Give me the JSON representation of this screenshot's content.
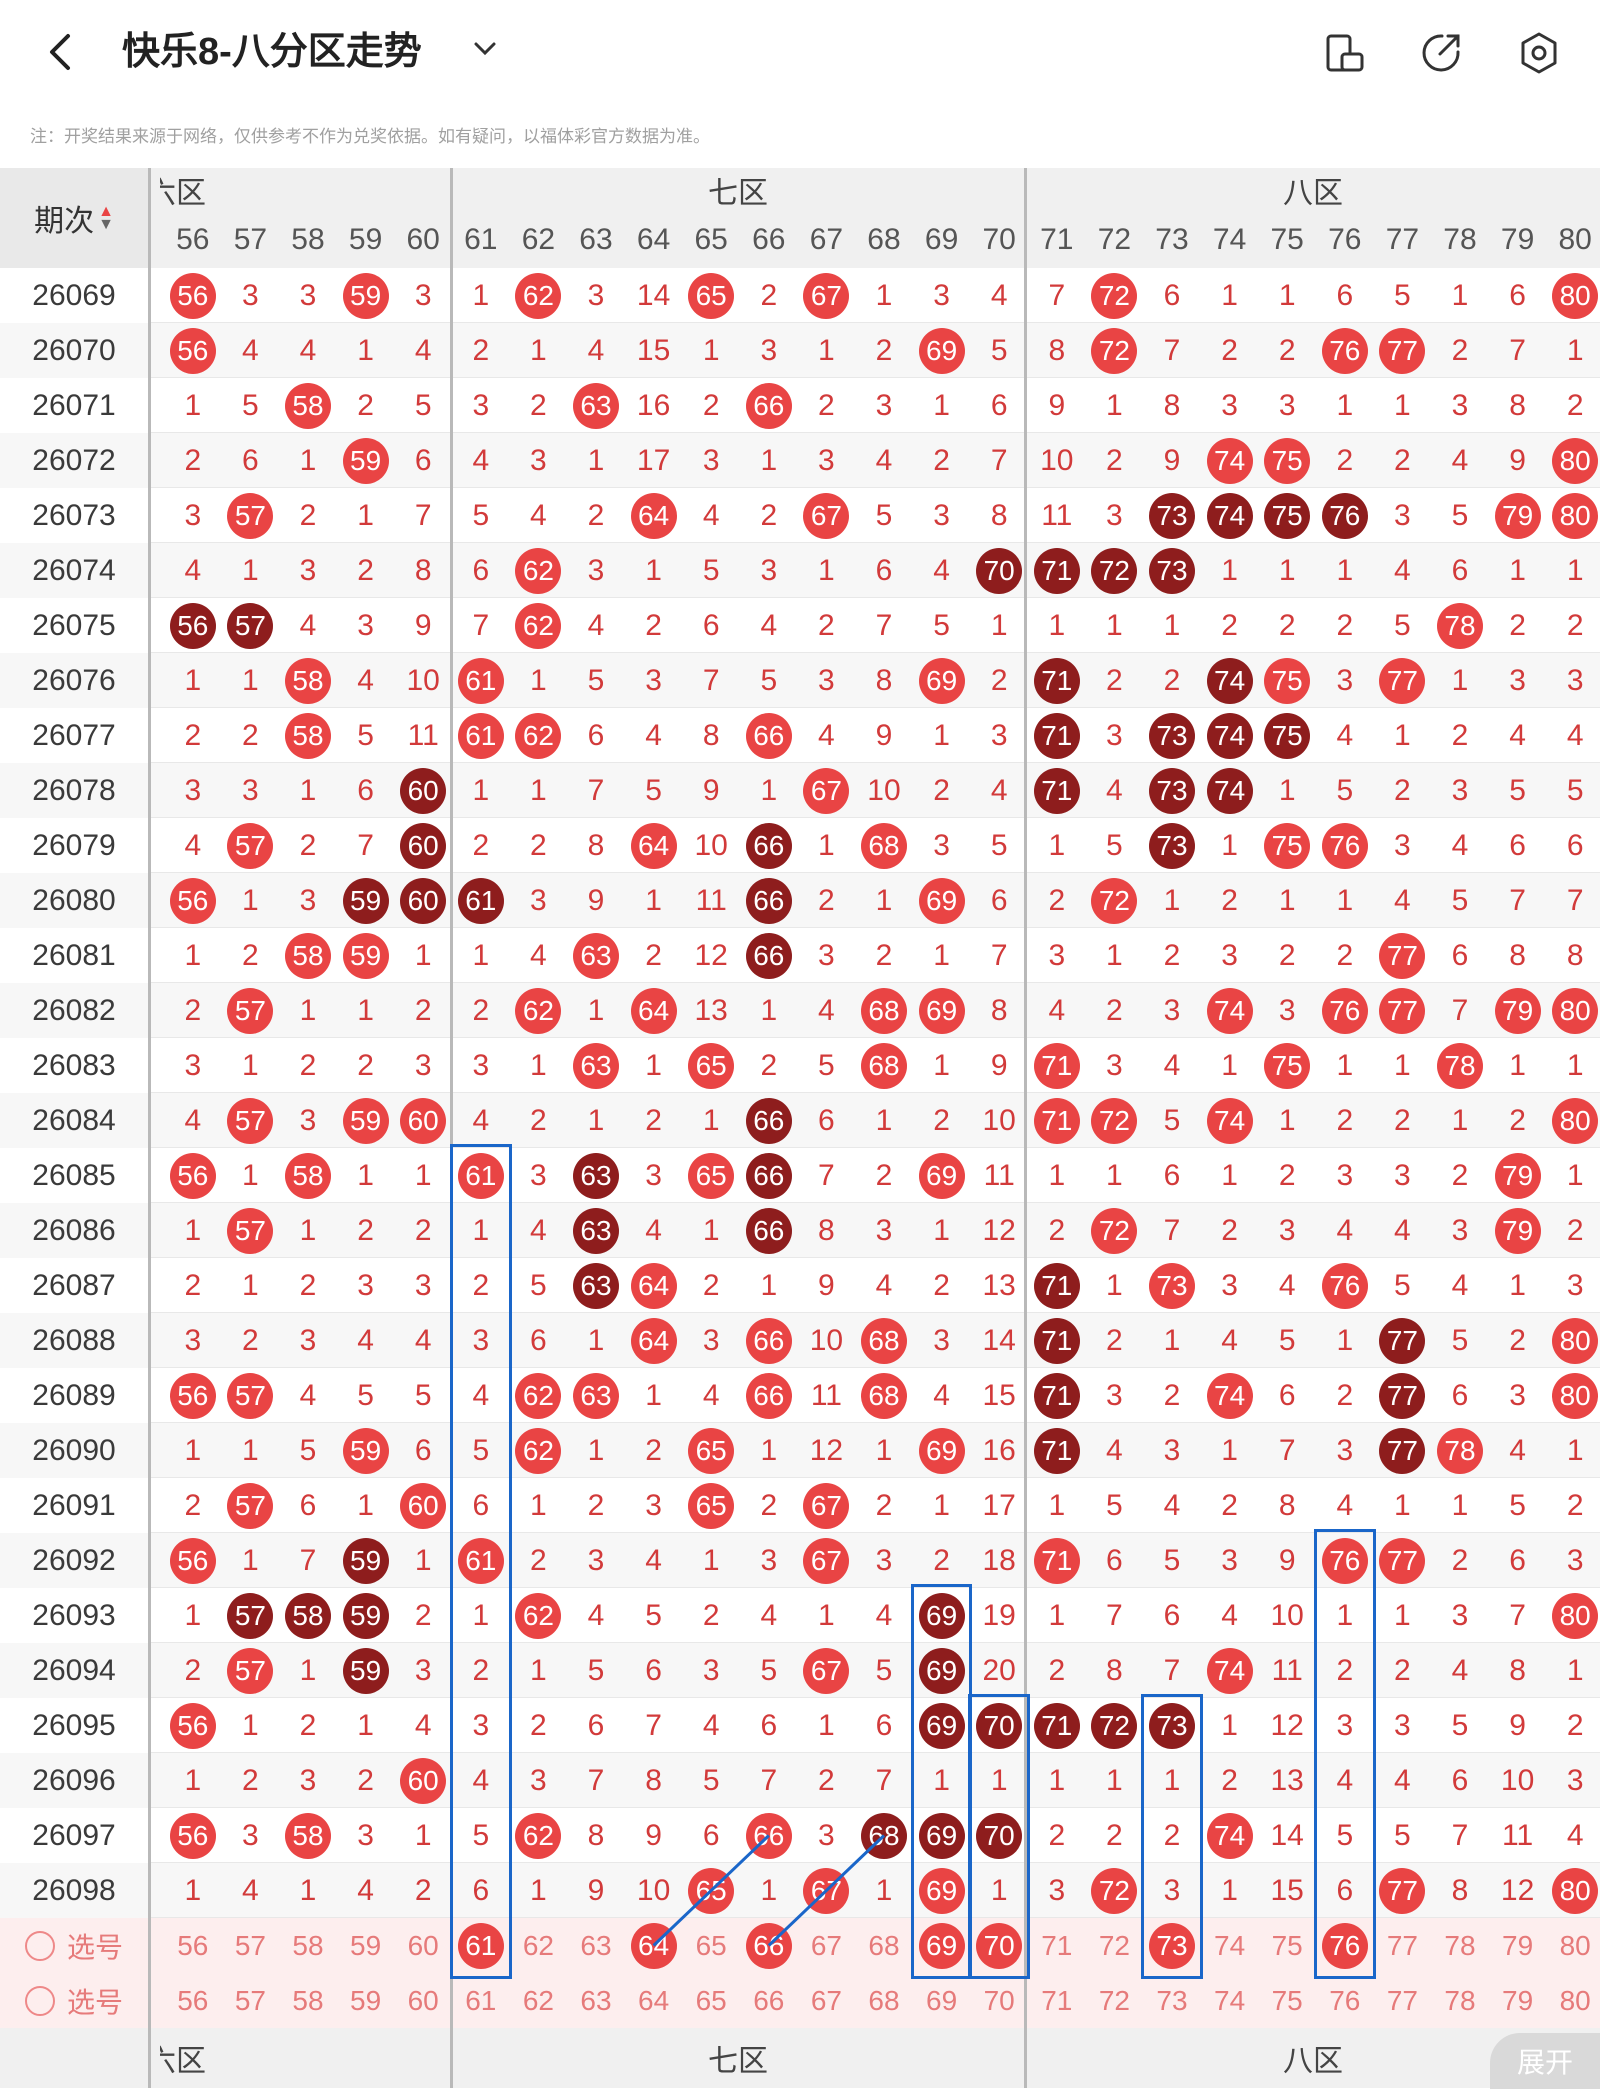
{
  "app": {
    "title": "快乐8-八分区走势",
    "note": "注：开奖结果来源于网络，仅供参考不作为兑奖依据。如有疑问，以福体彩官方数据为准。",
    "expand_label": "展开"
  },
  "header": {
    "period_label": "期次",
    "zones": [
      {
        "label": "六区",
        "display": "六区"
      },
      {
        "label": "七区",
        "display": "七区"
      },
      {
        "label": "八区",
        "display": "八区"
      }
    ],
    "numbers": [
      "56",
      "57",
      "58",
      "59",
      "60",
      "61",
      "62",
      "63",
      "64",
      "65",
      "66",
      "67",
      "68",
      "69",
      "70",
      "71",
      "72",
      "73",
      "74",
      "75",
      "76",
      "77",
      "78",
      "79",
      "80"
    ]
  },
  "select_rows": [
    {
      "label": "选号"
    },
    {
      "label": "选号"
    }
  ],
  "select_selected": [
    "61",
    "64",
    "66",
    "69",
    "70",
    "73",
    "76"
  ],
  "rows": [
    {
      "period": "26069",
      "vals": [
        "56",
        "3",
        "3",
        "59",
        "3",
        "1",
        "62",
        "3",
        "14",
        "65",
        "2",
        "67",
        "1",
        "3",
        "4",
        "7",
        "72",
        "6",
        "1",
        "1",
        "6",
        "5",
        "1",
        "6",
        "80"
      ]
    },
    {
      "period": "26070",
      "vals": [
        "56",
        "4",
        "4",
        "1",
        "4",
        "2",
        "1",
        "4",
        "15",
        "1",
        "3",
        "1",
        "2",
        "69",
        "5",
        "8",
        "72",
        "7",
        "2",
        "2",
        "76",
        "77",
        "2",
        "7",
        "1"
      ]
    },
    {
      "period": "26071",
      "vals": [
        "1",
        "5",
        "58",
        "2",
        "5",
        "3",
        "2",
        "63",
        "16",
        "2",
        "66",
        "2",
        "3",
        "1",
        "6",
        "9",
        "1",
        "8",
        "3",
        "3",
        "1",
        "1",
        "3",
        "8",
        "2"
      ]
    },
    {
      "period": "26072",
      "vals": [
        "2",
        "6",
        "1",
        "59",
        "6",
        "4",
        "3",
        "1",
        "17",
        "3",
        "1",
        "3",
        "4",
        "2",
        "7",
        "10",
        "2",
        "9",
        "74",
        "75",
        "2",
        "2",
        "4",
        "9",
        "80"
      ]
    },
    {
      "period": "26073",
      "vals": [
        "3",
        "57",
        "2",
        "1",
        "7",
        "5",
        "4",
        "2",
        "64",
        "4",
        "2",
        "67",
        "5",
        "3",
        "8",
        "11",
        "3",
        "73",
        "74",
        "75",
        "76",
        "3",
        "5",
        "79",
        "80"
      ]
    },
    {
      "period": "26074",
      "vals": [
        "4",
        "1",
        "3",
        "2",
        "8",
        "6",
        "62",
        "3",
        "1",
        "5",
        "3",
        "1",
        "6",
        "4",
        "70",
        "71",
        "72",
        "73",
        "1",
        "1",
        "1",
        "4",
        "6",
        "1",
        "1"
      ]
    },
    {
      "period": "26075",
      "vals": [
        "56",
        "57",
        "4",
        "3",
        "9",
        "7",
        "62",
        "4",
        "2",
        "6",
        "4",
        "2",
        "7",
        "5",
        "1",
        "1",
        "1",
        "1",
        "2",
        "2",
        "2",
        "5",
        "78",
        "2",
        "2"
      ]
    },
    {
      "period": "26076",
      "vals": [
        "1",
        "1",
        "58",
        "4",
        "10",
        "61",
        "1",
        "5",
        "3",
        "7",
        "5",
        "3",
        "8",
        "69",
        "2",
        "71",
        "2",
        "2",
        "74",
        "75",
        "3",
        "77",
        "1",
        "3",
        "3"
      ]
    },
    {
      "period": "26077",
      "vals": [
        "2",
        "2",
        "58",
        "5",
        "11",
        "61",
        "62",
        "6",
        "4",
        "8",
        "66",
        "4",
        "9",
        "1",
        "3",
        "71",
        "3",
        "73",
        "74",
        "75",
        "4",
        "1",
        "2",
        "4",
        "4"
      ]
    },
    {
      "period": "26078",
      "vals": [
        "3",
        "3",
        "1",
        "6",
        "60",
        "1",
        "1",
        "7",
        "5",
        "9",
        "1",
        "67",
        "10",
        "2",
        "4",
        "71",
        "4",
        "73",
        "74",
        "1",
        "5",
        "2",
        "3",
        "5",
        "5"
      ]
    },
    {
      "period": "26079",
      "vals": [
        "4",
        "57",
        "2",
        "7",
        "60",
        "2",
        "2",
        "8",
        "64",
        "10",
        "66",
        "1",
        "68",
        "3",
        "5",
        "1",
        "5",
        "73",
        "1",
        "75",
        "76",
        "3",
        "4",
        "6",
        "6"
      ]
    },
    {
      "period": "26080",
      "vals": [
        "56",
        "1",
        "3",
        "59",
        "60",
        "61",
        "3",
        "9",
        "1",
        "11",
        "66",
        "2",
        "1",
        "69",
        "6",
        "2",
        "72",
        "1",
        "2",
        "1",
        "1",
        "4",
        "5",
        "7",
        "7"
      ]
    },
    {
      "period": "26081",
      "vals": [
        "1",
        "2",
        "58",
        "59",
        "1",
        "1",
        "4",
        "63",
        "2",
        "12",
        "66",
        "3",
        "2",
        "1",
        "7",
        "3",
        "1",
        "2",
        "3",
        "2",
        "2",
        "77",
        "6",
        "8",
        "8"
      ]
    },
    {
      "period": "26082",
      "vals": [
        "2",
        "57",
        "1",
        "1",
        "2",
        "2",
        "62",
        "1",
        "64",
        "13",
        "1",
        "4",
        "68",
        "69",
        "8",
        "4",
        "2",
        "3",
        "74",
        "3",
        "76",
        "77",
        "7",
        "79",
        "80"
      ]
    },
    {
      "period": "26083",
      "vals": [
        "3",
        "1",
        "2",
        "2",
        "3",
        "3",
        "1",
        "63",
        "1",
        "65",
        "2",
        "5",
        "68",
        "1",
        "9",
        "71",
        "3",
        "4",
        "1",
        "75",
        "1",
        "1",
        "78",
        "1",
        "1"
      ]
    },
    {
      "period": "26084",
      "vals": [
        "4",
        "57",
        "3",
        "59",
        "60",
        "4",
        "2",
        "1",
        "2",
        "1",
        "66",
        "6",
        "1",
        "2",
        "10",
        "71",
        "72",
        "5",
        "74",
        "1",
        "2",
        "2",
        "1",
        "2",
        "80"
      ]
    },
    {
      "period": "26085",
      "vals": [
        "56",
        "1",
        "58",
        "1",
        "1",
        "61",
        "3",
        "63",
        "3",
        "65",
        "66",
        "7",
        "2",
        "69",
        "11",
        "1",
        "1",
        "6",
        "1",
        "2",
        "3",
        "3",
        "2",
        "79",
        "1"
      ]
    },
    {
      "period": "26086",
      "vals": [
        "1",
        "57",
        "1",
        "2",
        "2",
        "1",
        "4",
        "63",
        "4",
        "1",
        "66",
        "8",
        "3",
        "1",
        "12",
        "2",
        "72",
        "7",
        "2",
        "3",
        "4",
        "4",
        "3",
        "79",
        "2"
      ]
    },
    {
      "period": "26087",
      "vals": [
        "2",
        "1",
        "2",
        "3",
        "3",
        "2",
        "5",
        "63",
        "64",
        "2",
        "1",
        "9",
        "4",
        "2",
        "13",
        "71",
        "1",
        "73",
        "3",
        "4",
        "76",
        "5",
        "4",
        "1",
        "3"
      ]
    },
    {
      "period": "26088",
      "vals": [
        "3",
        "2",
        "3",
        "4",
        "4",
        "3",
        "6",
        "1",
        "64",
        "3",
        "66",
        "10",
        "68",
        "3",
        "14",
        "71",
        "2",
        "1",
        "4",
        "5",
        "1",
        "77",
        "5",
        "2",
        "80"
      ]
    },
    {
      "period": "26089",
      "vals": [
        "56",
        "57",
        "4",
        "5",
        "5",
        "4",
        "62",
        "63",
        "1",
        "4",
        "66",
        "11",
        "68",
        "4",
        "15",
        "71",
        "3",
        "2",
        "74",
        "6",
        "2",
        "77",
        "6",
        "3",
        "80"
      ]
    },
    {
      "period": "26090",
      "vals": [
        "1",
        "1",
        "5",
        "59",
        "6",
        "5",
        "62",
        "1",
        "2",
        "65",
        "1",
        "12",
        "1",
        "69",
        "16",
        "71",
        "4",
        "3",
        "1",
        "7",
        "3",
        "77",
        "78",
        "4",
        "1"
      ]
    },
    {
      "period": "26091",
      "vals": [
        "2",
        "57",
        "6",
        "1",
        "60",
        "6",
        "1",
        "2",
        "3",
        "65",
        "2",
        "67",
        "2",
        "1",
        "17",
        "1",
        "5",
        "4",
        "2",
        "8",
        "4",
        "1",
        "1",
        "5",
        "2"
      ]
    },
    {
      "period": "26092",
      "vals": [
        "56",
        "1",
        "7",
        "59",
        "1",
        "61",
        "2",
        "3",
        "4",
        "1",
        "3",
        "67",
        "3",
        "2",
        "18",
        "71",
        "6",
        "5",
        "3",
        "9",
        "76",
        "77",
        "2",
        "6",
        "3"
      ]
    },
    {
      "period": "26093",
      "vals": [
        "1",
        "57",
        "58",
        "59",
        "2",
        "1",
        "62",
        "4",
        "5",
        "2",
        "4",
        "1",
        "4",
        "69",
        "19",
        "1",
        "7",
        "6",
        "4",
        "10",
        "1",
        "1",
        "3",
        "7",
        "80"
      ]
    },
    {
      "period": "26094",
      "vals": [
        "2",
        "57",
        "1",
        "59",
        "3",
        "2",
        "1",
        "5",
        "6",
        "3",
        "5",
        "67",
        "5",
        "69",
        "20",
        "2",
        "8",
        "7",
        "74",
        "11",
        "2",
        "2",
        "4",
        "8",
        "1"
      ]
    },
    {
      "period": "26095",
      "vals": [
        "56",
        "1",
        "2",
        "1",
        "4",
        "3",
        "2",
        "6",
        "7",
        "4",
        "6",
        "1",
        "6",
        "69",
        "70",
        "71",
        "72",
        "73",
        "1",
        "12",
        "3",
        "3",
        "5",
        "9",
        "2"
      ]
    },
    {
      "period": "26096",
      "vals": [
        "1",
        "2",
        "3",
        "2",
        "60",
        "4",
        "3",
        "7",
        "8",
        "5",
        "7",
        "2",
        "7",
        "1",
        "1",
        "1",
        "1",
        "1",
        "2",
        "13",
        "4",
        "4",
        "6",
        "10",
        "3"
      ]
    },
    {
      "period": "26097",
      "vals": [
        "56",
        "3",
        "58",
        "3",
        "1",
        "5",
        "62",
        "8",
        "9",
        "6",
        "66",
        "3",
        "68",
        "69",
        "70",
        "2",
        "2",
        "2",
        "74",
        "14",
        "5",
        "5",
        "7",
        "11",
        "4"
      ]
    },
    {
      "period": "26098",
      "vals": [
        "1",
        "4",
        "1",
        "4",
        "2",
        "6",
        "1",
        "9",
        "10",
        "65",
        "1",
        "67",
        "1",
        "69",
        "1",
        "3",
        "72",
        "3",
        "1",
        "15",
        "6",
        "77",
        "8",
        "12",
        "80"
      ]
    }
  ],
  "dark": {
    "26069": [],
    "26070": [],
    "26071": [],
    "26072": [],
    "26073": [
      "73",
      "74",
      "75",
      "76"
    ],
    "26074": [
      "70",
      "71",
      "72",
      "73"
    ],
    "26075": [
      "56",
      "57"
    ],
    "26076": [
      "71",
      "74"
    ],
    "26077": [
      "71",
      "73",
      "74",
      "75"
    ],
    "26078": [
      "60",
      "71",
      "73",
      "74"
    ],
    "26079": [
      "60",
      "66",
      "73"
    ],
    "26080": [
      "59",
      "60",
      "61",
      "66"
    ],
    "26081": [
      "66"
    ],
    "26082": [],
    "26083": [],
    "26084": [
      "66"
    ],
    "26085": [
      "63",
      "66"
    ],
    "26086": [
      "63",
      "66"
    ],
    "26087": [
      "63",
      "71"
    ],
    "26088": [
      "71",
      "77"
    ],
    "26089": [
      "71",
      "77"
    ],
    "26090": [
      "71",
      "77"
    ],
    "26091": [],
    "26092": [
      "59"
    ],
    "26093": [
      "57",
      "58",
      "59",
      "69"
    ],
    "26094": [
      "59",
      "69"
    ],
    "26095": [
      "69",
      "70",
      "71",
      "72",
      "73"
    ],
    "26096": [],
    "26097": [
      "68",
      "69",
      "70"
    ],
    "26098": []
  },
  "colors": {
    "accent": "#e94444",
    "accent_dark": "#8e1d1d",
    "highlight_box": "#1a66c9",
    "text_red": "#d23a3a"
  },
  "icons": [
    "back-icon",
    "chevron-down-icon",
    "orientation-icon",
    "share-icon",
    "settings-icon"
  ]
}
